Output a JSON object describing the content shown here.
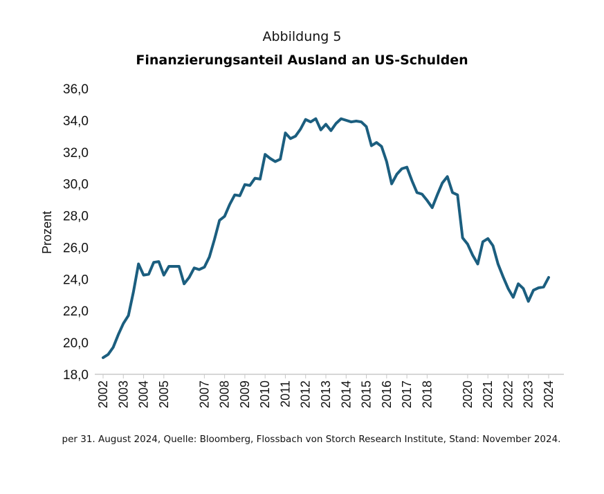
{
  "figure": {
    "supertitle": "Abbildung 5",
    "title": "Finanzierungsanteil Ausland an US-Schulden",
    "footnote": "per 31. August 2024, Quelle: Bloomberg, Flossbach von Storch Research Institute, Stand: November 2024."
  },
  "chart_data": {
    "type": "line",
    "title": "Finanzierungsanteil Ausland an US-Schulden",
    "xlabel": "",
    "ylabel": "Prozent",
    "ylim": [
      18.0,
      36.0
    ],
    "yticks": [
      18.0,
      20.0,
      22.0,
      24.0,
      26.0,
      28.0,
      30.0,
      32.0,
      34.0,
      36.0
    ],
    "ytick_labels": [
      "18,0",
      "20,0",
      "22,0",
      "24,0",
      "26,0",
      "28,0",
      "30,0",
      "32,0",
      "34,0",
      "36,0"
    ],
    "xlim": [
      2002.0,
      2024.75
    ],
    "xticks": [
      2002.0,
      2003.0,
      2004.0,
      2005.0,
      2007.0,
      2008.0,
      2009.0,
      2010.0,
      2011.0,
      2012.0,
      2013.0,
      2014.0,
      2015.0,
      2016.0,
      2017.0,
      2018.0,
      2020.0,
      2021.0,
      2022.0,
      2023.0,
      2024.0
    ],
    "xtick_labels": [
      "2002",
      "2003",
      "2004",
      "2005",
      "2007",
      "2008",
      "2009",
      "2010",
      "2011",
      "2012",
      "2013",
      "2014",
      "2015",
      "2016",
      "2017",
      "2018",
      "2020",
      "2021",
      "2022",
      "2023",
      "2024"
    ],
    "grid": false,
    "line_color": "#1b5e7f",
    "series": [
      {
        "name": "",
        "points": [
          [
            2002.0,
            19.05
          ],
          [
            2002.25,
            19.25
          ],
          [
            2002.5,
            19.7
          ],
          [
            2002.75,
            20.5
          ],
          [
            2003.0,
            21.2
          ],
          [
            2003.25,
            21.7
          ],
          [
            2003.5,
            23.2
          ],
          [
            2003.75,
            24.95
          ],
          [
            2004.0,
            24.25
          ],
          [
            2004.25,
            24.3
          ],
          [
            2004.5,
            25.05
          ],
          [
            2004.75,
            25.1
          ],
          [
            2005.0,
            24.25
          ],
          [
            2005.25,
            24.8
          ],
          [
            2005.5,
            24.8
          ],
          [
            2005.75,
            24.8
          ],
          [
            2006.0,
            23.7
          ],
          [
            2006.25,
            24.1
          ],
          [
            2006.5,
            24.7
          ],
          [
            2006.75,
            24.6
          ],
          [
            2007.0,
            24.75
          ],
          [
            2007.25,
            25.4
          ],
          [
            2007.5,
            26.5
          ],
          [
            2007.75,
            27.7
          ],
          [
            2008.0,
            27.95
          ],
          [
            2008.25,
            28.7
          ],
          [
            2008.5,
            29.3
          ],
          [
            2008.75,
            29.25
          ],
          [
            2009.0,
            29.95
          ],
          [
            2009.25,
            29.9
          ],
          [
            2009.5,
            30.35
          ],
          [
            2009.75,
            30.3
          ],
          [
            2010.0,
            31.85
          ],
          [
            2010.25,
            31.6
          ],
          [
            2010.5,
            31.4
          ],
          [
            2010.75,
            31.55
          ],
          [
            2011.0,
            33.2
          ],
          [
            2011.25,
            32.85
          ],
          [
            2011.5,
            33.0
          ],
          [
            2011.75,
            33.45
          ],
          [
            2012.0,
            34.05
          ],
          [
            2012.25,
            33.9
          ],
          [
            2012.5,
            34.1
          ],
          [
            2012.75,
            33.4
          ],
          [
            2013.0,
            33.75
          ],
          [
            2013.25,
            33.35
          ],
          [
            2013.5,
            33.8
          ],
          [
            2013.75,
            34.1
          ],
          [
            2014.0,
            34.0
          ],
          [
            2014.25,
            33.9
          ],
          [
            2014.5,
            33.95
          ],
          [
            2014.75,
            33.9
          ],
          [
            2015.0,
            33.6
          ],
          [
            2015.25,
            32.4
          ],
          [
            2015.5,
            32.6
          ],
          [
            2015.75,
            32.35
          ],
          [
            2016.0,
            31.4
          ],
          [
            2016.25,
            30.0
          ],
          [
            2016.5,
            30.6
          ],
          [
            2016.75,
            30.95
          ],
          [
            2017.0,
            31.05
          ],
          [
            2017.25,
            30.2
          ],
          [
            2017.5,
            29.45
          ],
          [
            2017.75,
            29.35
          ],
          [
            2018.0,
            28.95
          ],
          [
            2018.25,
            28.5
          ],
          [
            2018.5,
            29.3
          ],
          [
            2018.75,
            30.05
          ],
          [
            2019.0,
            30.45
          ],
          [
            2019.25,
            29.45
          ],
          [
            2019.5,
            29.3
          ],
          [
            2019.75,
            26.6
          ],
          [
            2020.0,
            26.2
          ],
          [
            2020.25,
            25.5
          ],
          [
            2020.5,
            24.95
          ],
          [
            2020.75,
            26.35
          ],
          [
            2021.0,
            26.55
          ],
          [
            2021.25,
            26.1
          ],
          [
            2021.5,
            24.95
          ],
          [
            2021.75,
            24.15
          ],
          [
            2022.0,
            23.4
          ],
          [
            2022.25,
            22.85
          ],
          [
            2022.5,
            23.7
          ],
          [
            2022.75,
            23.4
          ],
          [
            2023.0,
            22.6
          ],
          [
            2023.25,
            23.3
          ],
          [
            2023.5,
            23.45
          ],
          [
            2023.75,
            23.5
          ],
          [
            2024.0,
            24.1
          ]
        ]
      }
    ]
  }
}
